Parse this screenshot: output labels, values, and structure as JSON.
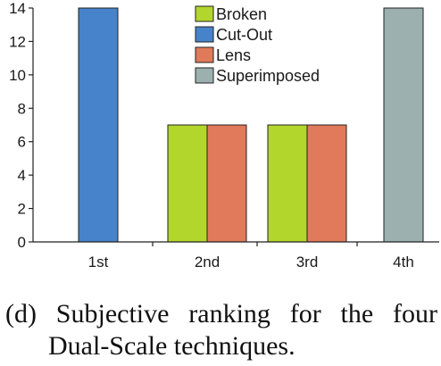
{
  "chart_data": {
    "type": "bar",
    "categories": [
      "1st",
      "2nd",
      "3rd",
      "4th"
    ],
    "series": [
      {
        "name": "Broken",
        "color": "#b2d62b",
        "values": [
          0,
          7,
          7,
          0
        ]
      },
      {
        "name": "Cut-Out",
        "color": "#4783cb",
        "values": [
          14,
          0,
          0,
          0
        ]
      },
      {
        "name": "Lens",
        "color": "#e07a5a",
        "values": [
          0,
          7,
          7,
          0
        ]
      },
      {
        "name": "Superimposed",
        "color": "#9cb0b0",
        "values": [
          0,
          0,
          0,
          14
        ]
      }
    ],
    "ylim": [
      0,
      14
    ],
    "yticks": [
      0,
      2,
      4,
      6,
      8,
      10,
      12,
      14
    ],
    "legend_position": "top-center",
    "title": "",
    "xlabel": "",
    "ylabel": ""
  },
  "caption": {
    "line1": "(d) Subjective ranking for the four",
    "line2": "Dual-Scale techniques."
  }
}
